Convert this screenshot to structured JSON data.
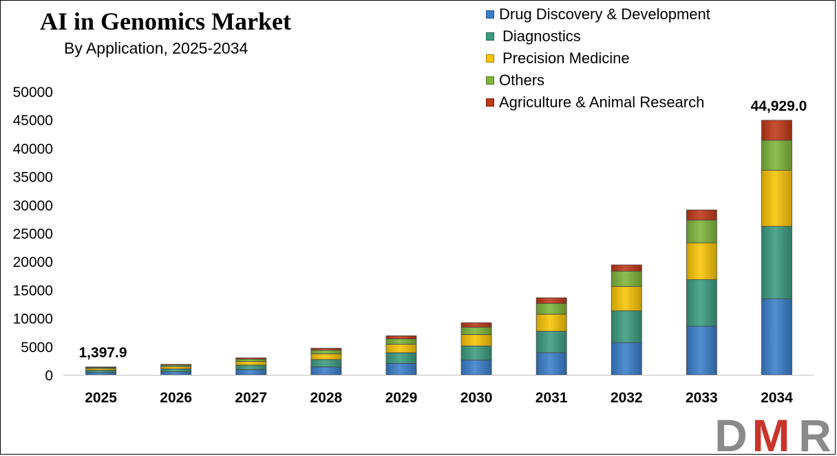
{
  "title": "AI in Genomics Market",
  "subtitle": "By Application, 2025-2034",
  "logo_text": "DMR",
  "colors": {
    "Drug Discovery & Development": "#3a7fcb",
    "Diagnostics": "#3c9b80",
    "Precision Medicine": "#f8c404",
    "Others": "#7db53a",
    "Agriculture & Animal Research": "#bf3818",
    "logo_gray": "#8a8a8a",
    "logo_red": "#c8352b"
  },
  "chart_data": {
    "type": "bar",
    "stacked": true,
    "categories": [
      "2025",
      "2026",
      "2027",
      "2028",
      "2029",
      "2030",
      "2031",
      "2032",
      "2033",
      "2034"
    ],
    "series": [
      {
        "name": "Drug Discovery & Development",
        "values": [
          420,
          560,
          910,
          1400,
          2000,
          2600,
          3900,
          5700,
          8600,
          13400
        ]
      },
      {
        "name": "Diagnostics",
        "values": [
          380,
          500,
          810,
          1300,
          1900,
          2500,
          3800,
          5600,
          8200,
          12800
        ]
      },
      {
        "name": "Precision Medicine",
        "values": [
          300,
          400,
          650,
          1000,
          1500,
          2000,
          3000,
          4300,
          6500,
          9900
        ]
      },
      {
        "name": "Others",
        "values": [
          190,
          250,
          400,
          650,
          950,
          1300,
          1900,
          2700,
          4000,
          5300
        ]
      },
      {
        "name": "Agriculture & Animal Research",
        "values": [
          108,
          140,
          230,
          350,
          550,
          800,
          1000,
          1100,
          1800,
          3529
        ]
      }
    ],
    "data_labels": [
      {
        "category": "2025",
        "text": "1,397.9"
      },
      {
        "category": "2034",
        "text": "44,929.0"
      }
    ],
    "ylim": [
      0,
      50000
    ],
    "yticks": [
      0,
      5000,
      10000,
      15000,
      20000,
      25000,
      30000,
      35000,
      40000,
      45000,
      50000
    ],
    "legend_position": "top-right",
    "grid": false
  }
}
